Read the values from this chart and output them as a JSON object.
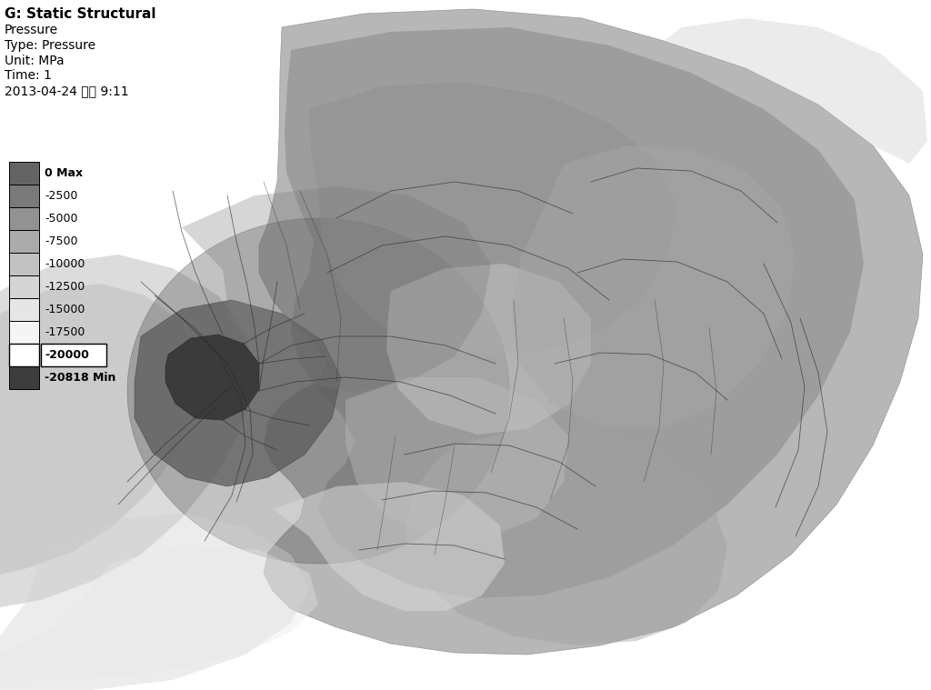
{
  "title_lines": [
    "G: Static Structural",
    "Pressure",
    "Type: Pressure",
    "Unit: MPa",
    "Time: 1",
    "2013-04-24 오후 9:11"
  ],
  "legend_labels": [
    "0 Max",
    "-2500",
    "-5000",
    "-7500",
    "-10000",
    "-12500",
    "-15000",
    "-17500",
    "-20000",
    "-20818 Min"
  ],
  "legend_colors": [
    "#646464",
    "#7a7a7a",
    "#929292",
    "#ababab",
    "#c2c2c2",
    "#d5d5d5",
    "#e6e6e6",
    "#f5f5f5",
    "#c8c8c8",
    "#3c3c3c"
  ],
  "background_color": "#ffffff"
}
